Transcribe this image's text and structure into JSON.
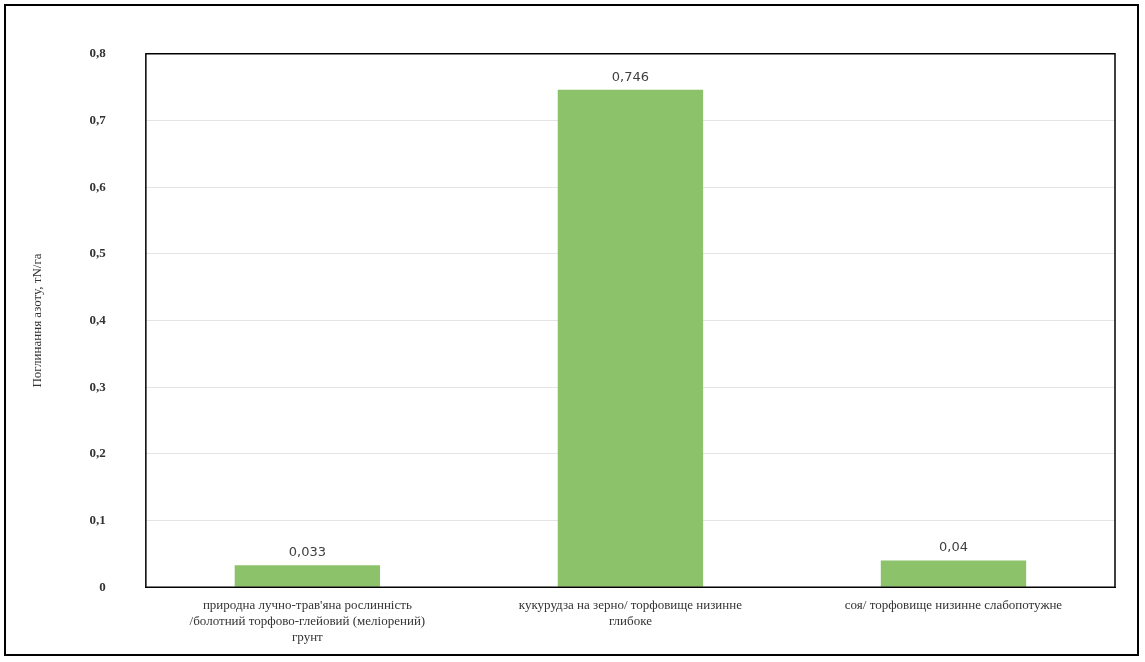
{
  "chart_data": {
    "type": "bar",
    "ylabel": "Поглинання азоту, тN/га",
    "categories": [
      "природна лучно-трав'яна рослинність /болотний торфово-глейовий (меліорений) грунт",
      "кукурудза на зерно/ торфовище низинне глибоке",
      "соя/ торфовище низинне слабопотужне"
    ],
    "values": [
      0.033,
      0.746,
      0.04
    ],
    "value_labels": [
      "0,033",
      "0,746",
      "0,04"
    ],
    "color": "#8cc26a",
    "ylim": [
      0,
      0.8
    ],
    "yticks": [
      {
        "value": 0,
        "label": "0"
      },
      {
        "value": 0.1,
        "label": "0,1"
      },
      {
        "value": 0.2,
        "label": "0,2"
      },
      {
        "value": 0.3,
        "label": "0,3"
      },
      {
        "value": 0.4,
        "label": "0,4"
      },
      {
        "value": 0.5,
        "label": "0,5"
      },
      {
        "value": 0.6,
        "label": "0,6"
      },
      {
        "value": 0.7,
        "label": "0,7"
      },
      {
        "value": 0.8,
        "label": "0,8"
      }
    ],
    "grid": "y",
    "legend": false
  }
}
